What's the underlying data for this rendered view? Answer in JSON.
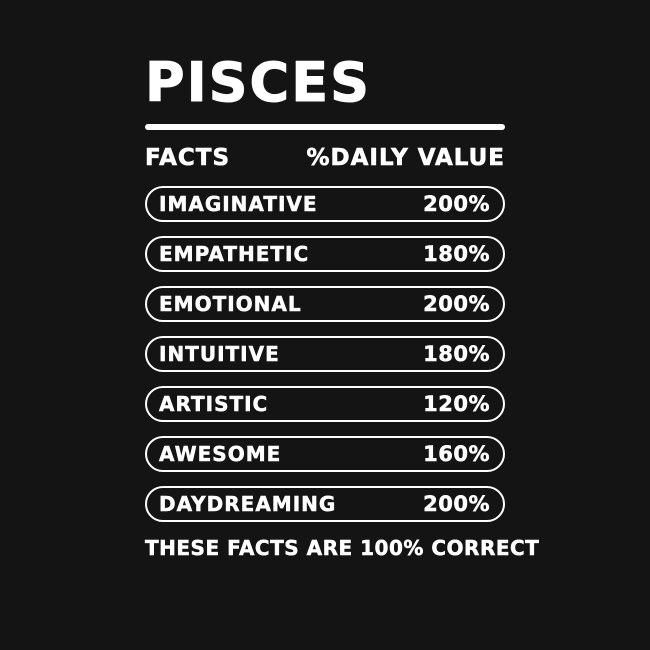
{
  "colors": {
    "background": "#141414",
    "foreground": "#FFFFFF"
  },
  "title": "PISCES",
  "table": {
    "header": {
      "facts": "FACTS",
      "daily_value": "%DAILY VALUE"
    },
    "rows": [
      {
        "label": "IMAGINATIVE",
        "value": "200%"
      },
      {
        "label": "EMPATHETIC",
        "value": "180%"
      },
      {
        "label": "EMOTIONAL",
        "value": "200%"
      },
      {
        "label": "INTUITIVE",
        "value": "180%"
      },
      {
        "label": "ARTISTIC",
        "value": "120%"
      },
      {
        "label": "AWESOME",
        "value": "160%"
      },
      {
        "label": "DAYDREAMING",
        "value": "200%"
      }
    ]
  },
  "footer": "THESE FACTS ARE 100% CORRECT"
}
